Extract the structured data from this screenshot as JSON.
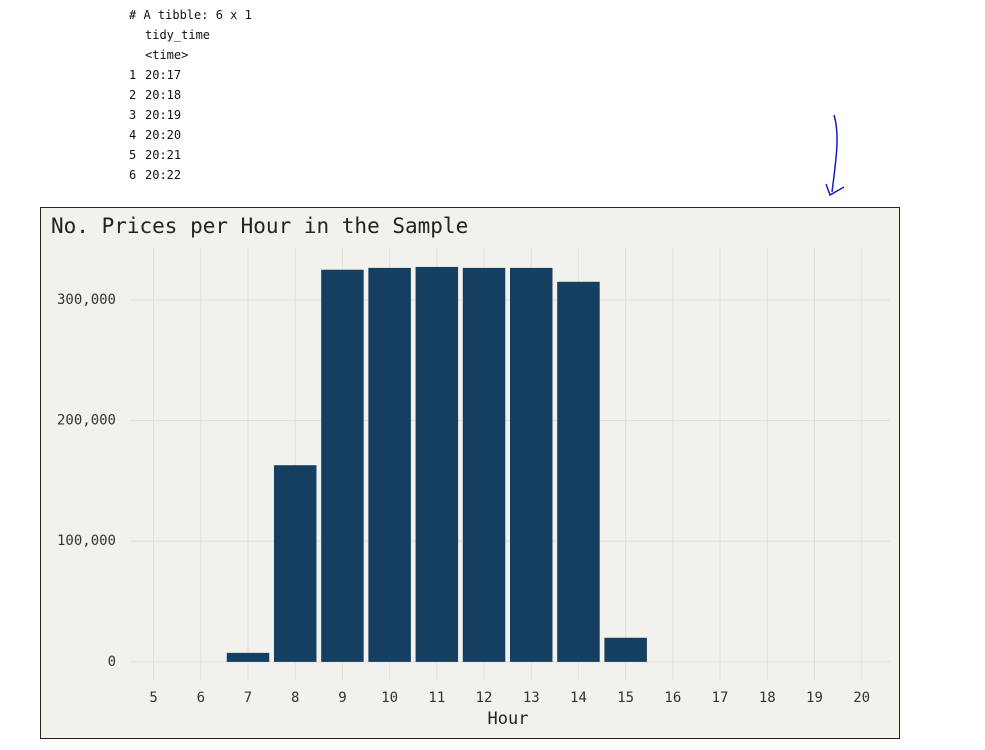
{
  "console": {
    "header": "# A tibble: 6 x 1",
    "column": "tidy_time",
    "column_type": "<time>",
    "rows": [
      [
        "1",
        "20:17"
      ],
      [
        "2",
        "20:18"
      ],
      [
        "3",
        "20:19"
      ],
      [
        "4",
        "20:20"
      ],
      [
        "5",
        "20:21"
      ],
      [
        "6",
        "20:22"
      ]
    ]
  },
  "chart_data": {
    "type": "bar",
    "title": "No. Prices per Hour in the Sample",
    "x_label": "Hour",
    "x": [
      7,
      8,
      9,
      10,
      11,
      12,
      13,
      14,
      15
    ],
    "values": [
      7500,
      163000,
      325000,
      326500,
      327300,
      326500,
      326500,
      315000,
      20000
    ],
    "color": "#143f60",
    "background": "#f3f1ec",
    "grid": true,
    "xlim": [
      4.5,
      20.6
    ],
    "xticks": [
      5,
      6,
      7,
      8,
      9,
      10,
      11,
      12,
      13,
      14,
      15,
      16,
      17,
      18,
      19,
      20
    ],
    "ylim": [
      -15000,
      343000
    ],
    "yticks": [
      0,
      {
        "value": 100000,
        "label": "100,000"
      },
      {
        "value": 200000,
        "label": "200,000"
      },
      {
        "value": 300000,
        "label": "300,000"
      }
    ]
  }
}
